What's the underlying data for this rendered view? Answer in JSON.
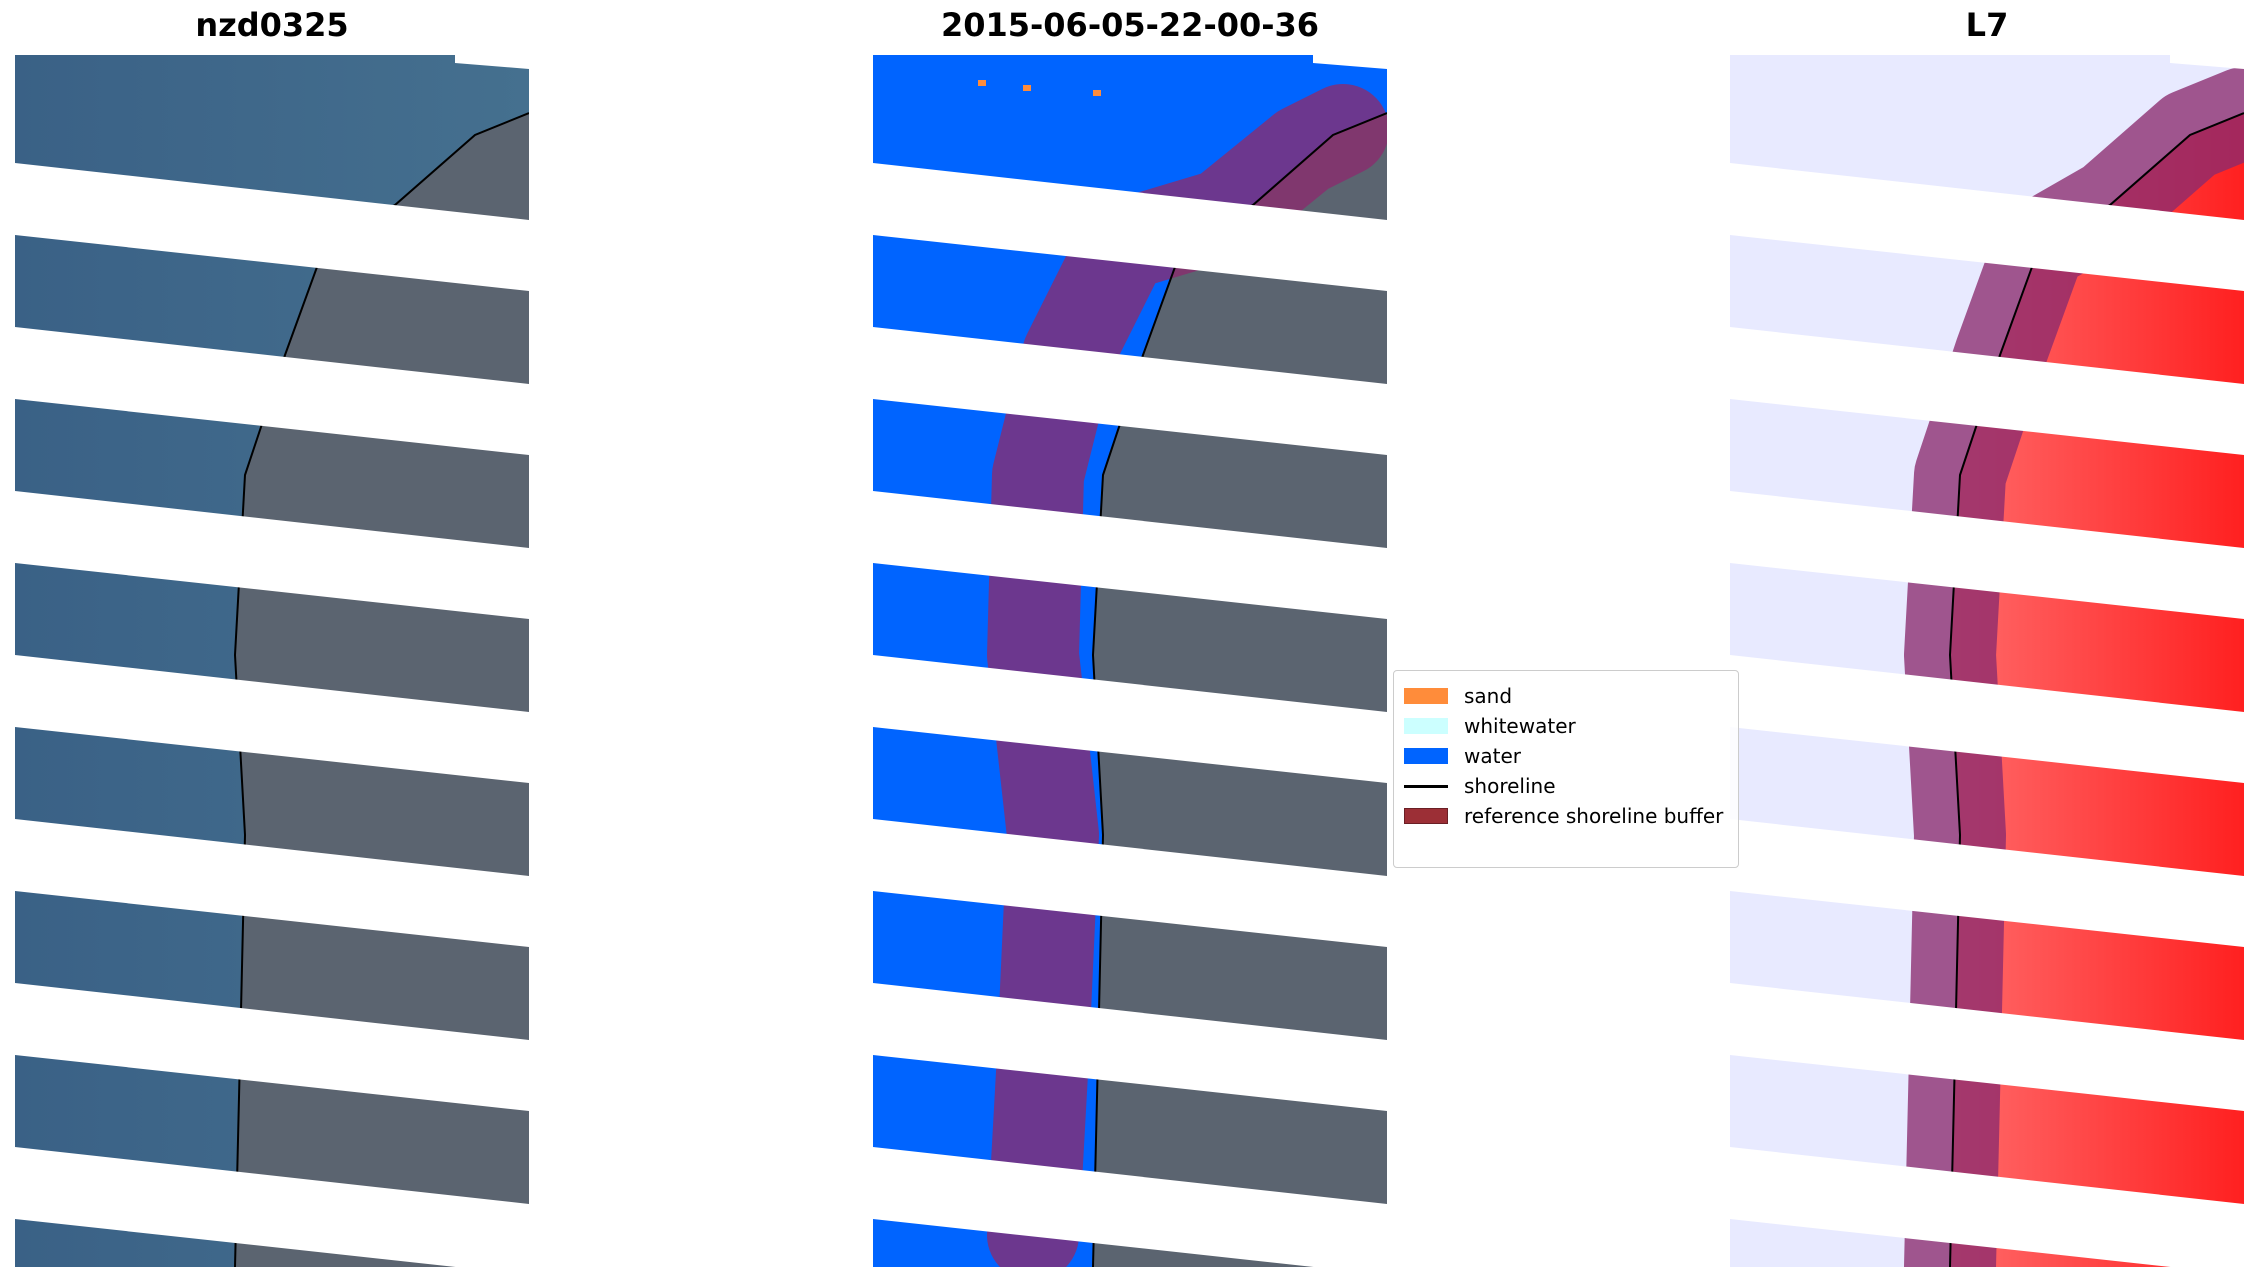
{
  "panels": [
    {
      "title": "nzd0325",
      "kind": "rgb"
    },
    {
      "title": "2015-06-05-22-00-36",
      "kind": "classified"
    },
    {
      "title": "L7",
      "kind": "index"
    }
  ],
  "legend": {
    "items": [
      {
        "label": "sand",
        "type": "patch",
        "color": "#ff8c3a"
      },
      {
        "label": "whitewater",
        "type": "patch",
        "color": "#ccffff"
      },
      {
        "label": "water",
        "type": "patch",
        "color": "#0064ff"
      },
      {
        "label": "shoreline",
        "type": "line",
        "color": "#000000"
      },
      {
        "label": "reference shoreline buffer",
        "type": "patch",
        "color": "#9c2f36"
      }
    ]
  },
  "colors": {
    "sea": "#3e6487",
    "land": "#565f6b",
    "water_class": "#0064ff",
    "sand_class": "#ff8c3a",
    "buffer": "#8b2a6e",
    "index_low": "#e6e8ff",
    "index_high": "#ff2020",
    "shoreline": "#000000"
  }
}
